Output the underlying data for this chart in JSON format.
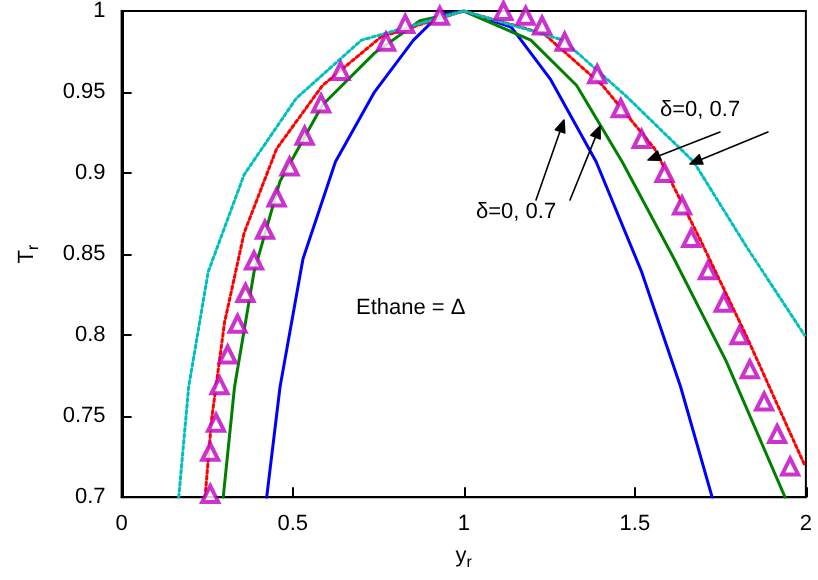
{
  "chart_data": {
    "type": "line",
    "xlabel": "y$_{r}$",
    "ylabel": "T$_{r}$",
    "xlim": [
      0,
      2
    ],
    "xticks": [
      0,
      0.5,
      1,
      1.5,
      2
    ],
    "ylim": [
      0.7,
      1
    ],
    "yticks": [
      0.7,
      0.75,
      0.8,
      0.85,
      0.9,
      0.95,
      1
    ],
    "grid": false,
    "series": [
      {
        "color": "#0000ff",
        "line_style": "solid",
        "marker": "none",
        "x": [
          0.424,
          0.463,
          0.53,
          0.625,
          0.739,
          0.853,
          0.93,
          1.0,
          1.139,
          1.253,
          1.387,
          1.52,
          1.634,
          1.726
        ],
        "values": [
          0.7,
          0.768,
          0.847,
          0.907,
          0.95,
          0.982,
          0.998,
          1.0,
          0.99,
          0.958,
          0.907,
          0.839,
          0.768,
          0.7
        ]
      },
      {
        "color": "#008000",
        "line_style": "solid",
        "marker": "none",
        "x": [
          0.297,
          0.33,
          0.387,
          0.463,
          0.587,
          0.739,
          0.872,
          1.0,
          1.196,
          1.33,
          1.463,
          1.615,
          1.767,
          1.939
        ],
        "values": [
          0.7,
          0.768,
          0.839,
          0.895,
          0.942,
          0.974,
          0.994,
          1.0,
          0.982,
          0.954,
          0.907,
          0.847,
          0.784,
          0.7
        ]
      },
      {
        "color": "#ff0000",
        "line_style": "dotted",
        "marker": "none",
        "x": [
          0.244,
          0.263,
          0.301,
          0.358,
          0.453,
          0.587,
          0.758,
          1.0,
          1.234,
          1.406,
          1.558,
          1.691,
          1.825,
          1.996
        ],
        "values": [
          0.7,
          0.748,
          0.808,
          0.863,
          0.915,
          0.954,
          0.984,
          1.0,
          0.986,
          0.954,
          0.915,
          0.859,
          0.8,
          0.72
        ]
      },
      {
        "color": "#00bfbf",
        "line_style": "dotted",
        "marker": "none",
        "x": [
          0.167,
          0.196,
          0.253,
          0.358,
          0.51,
          0.701,
          1.0,
          1.291,
          1.482,
          1.672,
          1.825,
          1.996
        ],
        "values": [
          0.7,
          0.768,
          0.839,
          0.899,
          0.946,
          0.982,
          1.0,
          0.982,
          0.946,
          0.907,
          0.855,
          0.8
        ]
      },
      {
        "type": "scatter",
        "color": "#bf00bf",
        "marker": "triangle",
        "x": [
          0.259,
          0.259,
          0.276,
          0.286,
          0.31,
          0.339,
          0.362,
          0.387,
          0.419,
          0.453,
          0.491,
          0.535,
          0.583,
          0.64,
          0.773,
          0.829,
          0.93,
          1.116,
          1.181,
          1.229,
          1.295,
          1.39,
          1.459,
          1.52,
          1.587,
          1.638,
          1.665,
          1.714,
          1.76,
          1.806,
          1.836,
          1.878,
          1.916,
          1.954
        ],
        "values": [
          0.702,
          0.728,
          0.746,
          0.769,
          0.788,
          0.807,
          0.826,
          0.846,
          0.865,
          0.885,
          0.904,
          0.923,
          0.943,
          0.963,
          0.981,
          0.992,
          0.997,
          1.0,
          0.997,
          0.991,
          0.981,
          0.961,
          0.94,
          0.921,
          0.9,
          0.88,
          0.86,
          0.84,
          0.82,
          0.8,
          0.779,
          0.759,
          0.739,
          0.719
        ]
      }
    ],
    "annotations": [
      "δ=0, 0.7",
      "δ=0, 0.7",
      "Ethane = Δ"
    ]
  }
}
